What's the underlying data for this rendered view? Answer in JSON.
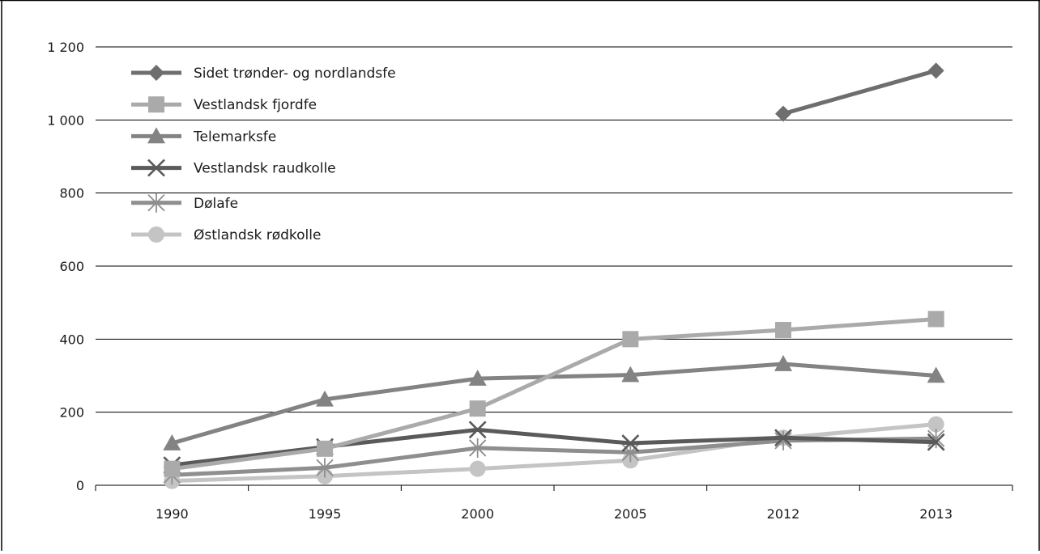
{
  "chart_data": {
    "type": "line",
    "categories": [
      "1990",
      "1995",
      "2000",
      "2005",
      "2012",
      "2013"
    ],
    "ylim": [
      0,
      1200
    ],
    "y_ticks": [
      {
        "value": 0,
        "label": "0"
      },
      {
        "value": 200,
        "label": "200"
      },
      {
        "value": 400,
        "label": "400"
      },
      {
        "value": 600,
        "label": "600"
      },
      {
        "value": 800,
        "label": "800"
      },
      {
        "value": 1000,
        "label": "1 000"
      },
      {
        "value": 1200,
        "label": "1 200"
      }
    ],
    "grid": true,
    "legend_position": "top-left",
    "series": [
      {
        "name": "Sidet trønder- og nordlandsfe",
        "marker": "diamond",
        "color": "#6e6e6e",
        "values": [
          null,
          null,
          null,
          null,
          1017,
          1135
        ]
      },
      {
        "name": "Vestlandsk fjordfe",
        "marker": "square",
        "color": "#aaaaaa",
        "values": [
          45,
          100,
          210,
          400,
          425,
          455
        ]
      },
      {
        "name": "Telemarksfe",
        "marker": "triangle",
        "color": "#838383",
        "values": [
          115,
          235,
          292,
          302,
          332,
          300
        ]
      },
      {
        "name": "Vestlandsk raudkolle",
        "marker": "x",
        "color": "#5a5a5a",
        "values": [
          55,
          105,
          152,
          115,
          130,
          118
        ]
      },
      {
        "name": "Dølafe",
        "marker": "asterisk",
        "color": "#8e8e8e",
        "values": [
          28,
          48,
          102,
          90,
          122,
          128
        ]
      },
      {
        "name": "Østlandsk rødkolle",
        "marker": "circle",
        "color": "#c4c4c4",
        "values": [
          12,
          25,
          45,
          68,
          130,
          167
        ]
      }
    ]
  }
}
